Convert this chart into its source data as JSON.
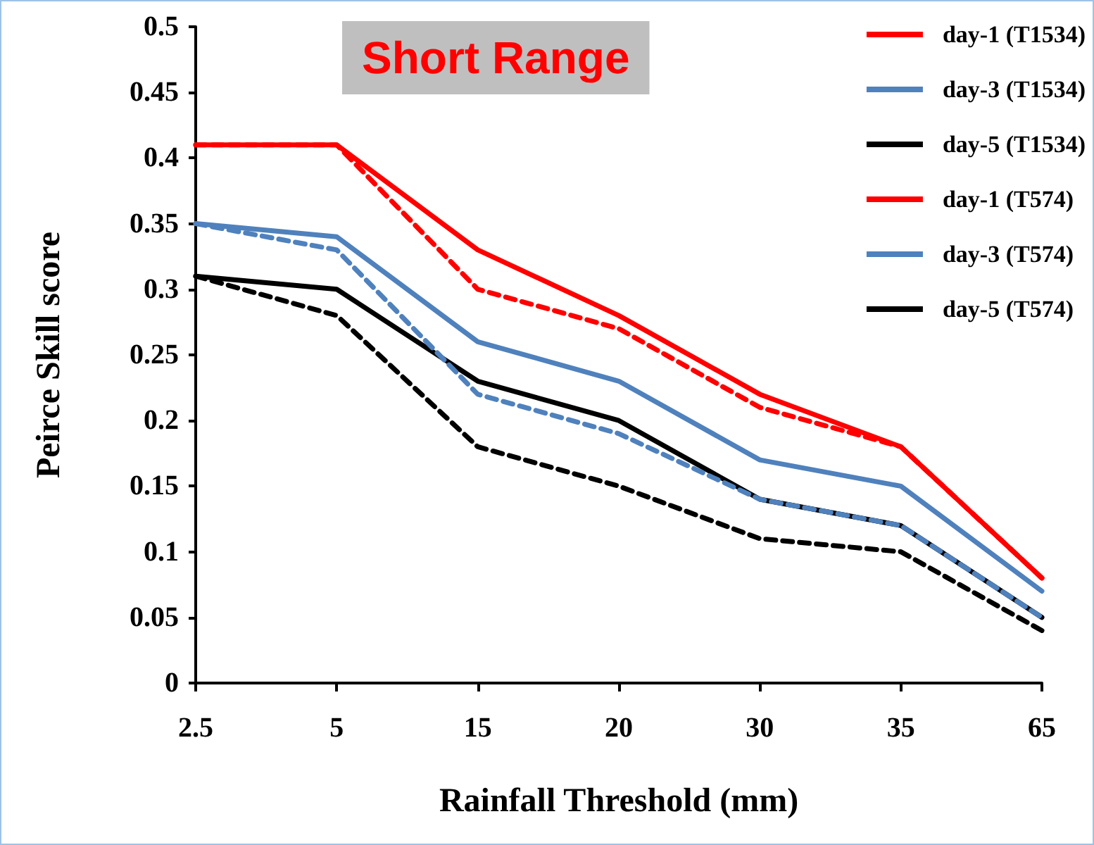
{
  "chart_data": {
    "type": "line",
    "title": "Short Range",
    "xlabel": "Rainfall Threshold (mm)",
    "ylabel": "Peirce Skill score",
    "categories": [
      "2.5",
      "5",
      "15",
      "20",
      "30",
      "35",
      "65"
    ],
    "series": [
      {
        "name": "day-1 (T1534)",
        "color": "#ff0000",
        "line_style": "solid",
        "values": [
          0.41,
          0.41,
          0.33,
          0.28,
          0.22,
          0.18,
          0.08
        ]
      },
      {
        "name": "day-3 (T1534)",
        "color": "#4f81bd",
        "line_style": "solid",
        "values": [
          0.35,
          0.34,
          0.26,
          0.23,
          0.17,
          0.15,
          0.07
        ]
      },
      {
        "name": "day-5 (T1534)",
        "color": "#000000",
        "line_style": "solid",
        "values": [
          0.31,
          0.3,
          0.23,
          0.2,
          0.14,
          0.12,
          0.05
        ]
      },
      {
        "name": "day-1 (T574)",
        "color": "#ff0000",
        "line_style": "dashed",
        "values": [
          0.41,
          0.41,
          0.3,
          0.27,
          0.21,
          0.18,
          0.08
        ]
      },
      {
        "name": "day-3 (T574)",
        "color": "#4f81bd",
        "line_style": "dashed",
        "values": [
          0.35,
          0.33,
          0.22,
          0.19,
          0.14,
          0.12,
          0.05
        ]
      },
      {
        "name": "day-5 (T574)",
        "color": "#000000",
        "line_style": "dashed",
        "values": [
          0.31,
          0.28,
          0.18,
          0.15,
          0.11,
          0.1,
          0.04
        ]
      }
    ],
    "ylim": [
      0,
      0.5
    ],
    "yticks": [
      0,
      0.05,
      0.1,
      0.15,
      0.2,
      0.25,
      0.3,
      0.35,
      0.4,
      0.45,
      0.5
    ],
    "grid": false,
    "legend": "top right",
    "marker": "none"
  }
}
